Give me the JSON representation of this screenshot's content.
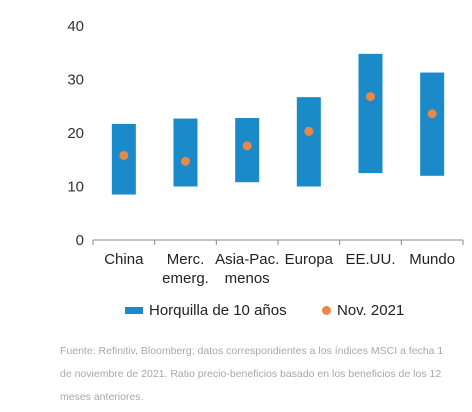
{
  "chart_data": {
    "type": "bar",
    "subtype": "floating-range-with-marker",
    "categories": [
      [
        "China"
      ],
      [
        "Merc.",
        "emerg."
      ],
      [
        "Asia-Pac.",
        "menos"
      ],
      [
        "Europa"
      ],
      [
        "EE.UU."
      ],
      [
        "Mundo"
      ]
    ],
    "series": [
      {
        "name": "Horquilla de 10 años",
        "kind": "range",
        "low": [
          8.5,
          10.0,
          10.8,
          10.0,
          12.5,
          12.0
        ],
        "high": [
          21.7,
          22.7,
          22.8,
          26.7,
          34.8,
          31.3
        ]
      },
      {
        "name": "Nov. 2021",
        "kind": "point",
        "values": [
          15.8,
          14.7,
          17.6,
          20.3,
          26.8,
          23.6
        ]
      }
    ],
    "yticks": [
      0,
      10,
      20,
      30,
      40
    ],
    "ylim": [
      0,
      40
    ],
    "grid": false,
    "legend_position": "bottom",
    "colors": {
      "range": "#1a8ac9",
      "point": "#e8894a"
    }
  },
  "source_text": "Fuente: Refinitiv, Bloomberg; datos correspondientes a los índices MSCI a fecha 1 de noviembre de 2021. Ratio precio-beneficios basado en los beneficios de los 12 meses anteriores."
}
